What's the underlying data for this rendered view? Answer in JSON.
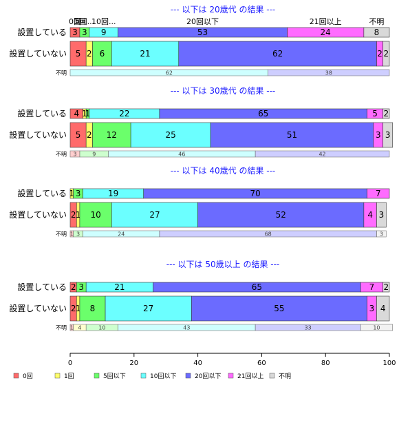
{
  "chart_data": {
    "type": "bar",
    "orientation": "horizontal-stacked-percent",
    "categories": [
      "0回",
      "1回",
      "5回以下",
      "10回以下",
      "20回以下",
      "21回以上",
      "不明"
    ],
    "colors": [
      "#ff6b6b",
      "#ffff6b",
      "#6bff6b",
      "#6bffff",
      "#6b6bff",
      "#ff6bff",
      "#d9d9d9"
    ],
    "top_header_labels": [
      "0回",
      "1回",
      "5回...",
      "10回...",
      "20回以下",
      "21回以上",
      "不明"
    ],
    "xlim": [
      0,
      100
    ],
    "xticks": [
      "0",
      "20",
      "40",
      "60",
      "80",
      "100"
    ],
    "panels": [
      {
        "title": "--- 以下は 20歳代 の結果 ---",
        "rows": [
          {
            "label": "設置している",
            "values": [
              3,
              0,
              3,
              9,
              53,
              24,
              8
            ]
          },
          {
            "label": "設置していない",
            "values": [
              5,
              2,
              6,
              21,
              62,
              2,
              2
            ]
          }
        ],
        "unknown": {
          "label": "不明",
          "values": [
            0,
            0,
            0,
            62,
            38,
            0,
            0
          ]
        }
      },
      {
        "title": "--- 以下は 30歳代 の結果 ---",
        "rows": [
          {
            "label": "設置している",
            "values": [
              4,
              1,
              1,
              22,
              65,
              5,
              2
            ]
          },
          {
            "label": "設置していない",
            "values": [
              5,
              2,
              12,
              25,
              51,
              3,
              3
            ]
          }
        ],
        "unknown": {
          "label": "不明",
          "values": [
            3,
            0,
            9,
            46,
            42,
            0,
            0
          ]
        }
      },
      {
        "title": "--- 以下は 40歳代 の結果 ---",
        "rows": [
          {
            "label": "設置している",
            "values": [
              0,
              1,
              3,
              19,
              70,
              7,
              0
            ]
          },
          {
            "label": "設置していない",
            "values": [
              2,
              1,
              10,
              27,
              52,
              4,
              3
            ]
          }
        ],
        "unknown": {
          "label": "不明",
          "values": [
            1,
            0,
            3,
            24,
            68,
            0,
            3
          ]
        }
      },
      {
        "title": "--- 以下は 50歳以上 の結果 ---",
        "rows": [
          {
            "label": "設置している",
            "values": [
              2,
              0,
              3,
              21,
              65,
              7,
              2
            ]
          },
          {
            "label": "設置していない",
            "values": [
              2,
              1,
              8,
              27,
              55,
              3,
              4
            ]
          }
        ],
        "unknown": {
          "label": "不明",
          "values": [
            1,
            4,
            10,
            43,
            33,
            0,
            10
          ]
        }
      }
    ]
  }
}
